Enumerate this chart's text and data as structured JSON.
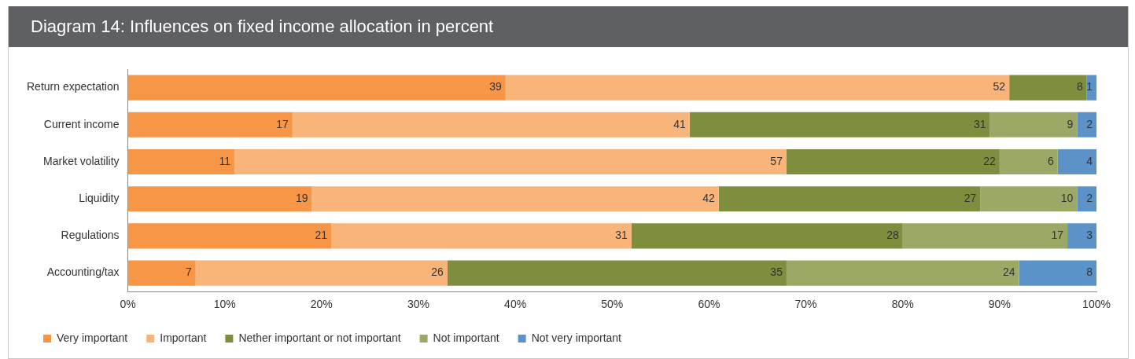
{
  "chart_data": {
    "type": "bar",
    "title": "Diagram 14: Influences on fixed income allocation in percent",
    "orientation": "horizontal",
    "stacked": true,
    "categories": [
      "Return expectation",
      "Current income",
      "Market volatility",
      "Liquidity",
      "Regulations",
      "Accounting/tax"
    ],
    "series": [
      {
        "name": "Very important",
        "color": "#f79646",
        "values": [
          39,
          17,
          11,
          19,
          21,
          7
        ]
      },
      {
        "name": "Important",
        "color": "#f9b47a",
        "values": [
          52,
          41,
          57,
          42,
          31,
          26
        ]
      },
      {
        "name": "Nether important or not important",
        "color": "#7f8d3e",
        "values": [
          8,
          31,
          22,
          27,
          28,
          35
        ]
      },
      {
        "name": "Not important",
        "color": "#9ca866",
        "values": [
          null,
          9,
          6,
          10,
          17,
          24
        ]
      },
      {
        "name": "Not very important",
        "color": "#5b93c8",
        "values": [
          1,
          2,
          4,
          2,
          3,
          8
        ]
      }
    ],
    "xlim": [
      0,
      100
    ],
    "xticks": [
      {
        "value": 0,
        "label": "0%"
      },
      {
        "value": 10,
        "label": "10%"
      },
      {
        "value": 20,
        "label": "20%"
      },
      {
        "value": 30,
        "label": "30%"
      },
      {
        "value": 40,
        "label": "40%"
      },
      {
        "value": 50,
        "label": "50%"
      },
      {
        "value": 60,
        "label": "60%"
      },
      {
        "value": 70,
        "label": "70%"
      },
      {
        "value": 80,
        "label": "80%"
      },
      {
        "value": 90,
        "label": "90%"
      },
      {
        "value": 100,
        "label": "100%"
      }
    ],
    "data_labels": true,
    "legend": "bottom left",
    "grid": false
  }
}
